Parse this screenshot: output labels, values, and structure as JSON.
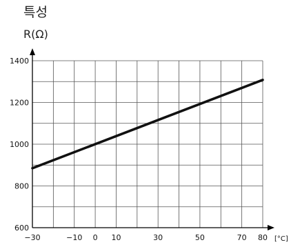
{
  "chart_data": {
    "type": "line",
    "title": "특성",
    "ylabel": "R(Ω)",
    "xlabel": "",
    "x_unit": "[°C]",
    "xlim": [
      -30,
      80
    ],
    "ylim": [
      600,
      1400
    ],
    "x_ticks": [
      "−30",
      "−10",
      "0",
      "10",
      "30",
      "50",
      "70",
      "80"
    ],
    "y_ticks": [
      "600",
      "800",
      "1000",
      "1200",
      "1400"
    ],
    "grid": true,
    "series": [
      {
        "x": [
          -30,
          80
        ],
        "y": [
          885,
          1308
        ]
      }
    ]
  }
}
